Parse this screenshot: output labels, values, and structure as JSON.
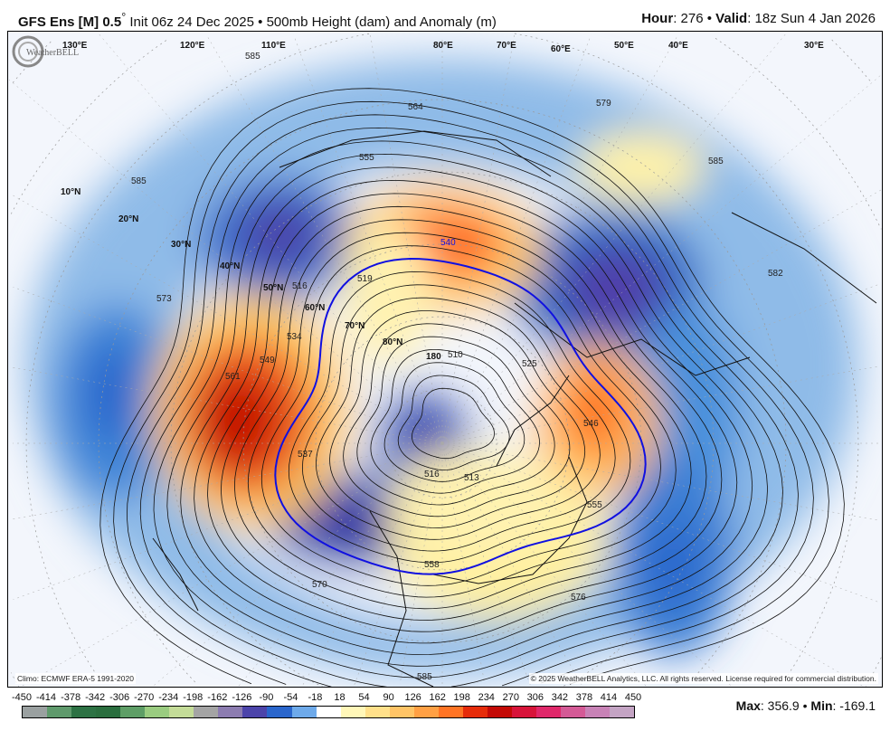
{
  "header": {
    "model": "GFS Ens [M] 0.5",
    "degree": "°",
    "init": "Init 06z 24 Dec 2025",
    "sep": "•",
    "product": "500mb Height (dam) and Anomaly (m)",
    "hour_label": "Hour",
    "hour": "276",
    "valid_label": "Valid",
    "valid": "18z Sun 4 Jan 2026"
  },
  "map": {
    "lat_labels": [
      "10°N",
      "20°N",
      "30°N",
      "40°N",
      "50°N",
      "60°N",
      "70°N",
      "80°N"
    ],
    "lon_labels": [
      "130°E",
      "120°E",
      "110°E",
      "80°E",
      "70°E",
      "60°E",
      "50°E",
      "40°E",
      "30°E",
      "180"
    ],
    "contour_labels": [
      "585",
      "564",
      "555",
      "579",
      "585",
      "585",
      "573",
      "540",
      "519",
      "516",
      "534",
      "549",
      "561",
      "537",
      "510",
      "525",
      "516",
      "513",
      "546",
      "555",
      "558",
      "570",
      "576",
      "585",
      "582"
    ],
    "highlight_contour": "540",
    "climo": "Climo: ECMWF ERA-5 1991-2020",
    "copyright": "© 2025 WeatherBELL Analytics, LLC. All rights reserved. License required for commercial distribution.",
    "logo_text": "WeatherBELL"
  },
  "colorbar": {
    "labels": [
      "-450",
      "-414",
      "-378",
      "-342",
      "-306",
      "-270",
      "-234",
      "-198",
      "-162",
      "-126",
      "-90",
      "-54",
      "-18",
      "18",
      "54",
      "90",
      "126",
      "162",
      "198",
      "234",
      "270",
      "306",
      "342",
      "378",
      "414",
      "450"
    ],
    "colors": [
      "#9aa0a0",
      "#5f9a6c",
      "#2d7244",
      "#2a6e3e",
      "#5e9e66",
      "#9acc80",
      "#c4dc98",
      "#a4a4a4",
      "#8c7cb0",
      "#4c44aa",
      "#2a66cc",
      "#6eaaea",
      "#ffffff",
      "#fff7b8",
      "#ffe08a",
      "#ffc466",
      "#ffa044",
      "#ff7424",
      "#e62c0a",
      "#c40a06",
      "#d8143a",
      "#e0286a",
      "#d45a96",
      "#c882b6",
      "#c4a4c4"
    ]
  },
  "stats": {
    "max_label": "Max",
    "max": "356.9",
    "min_label": "Min",
    "min": "-169.1"
  }
}
